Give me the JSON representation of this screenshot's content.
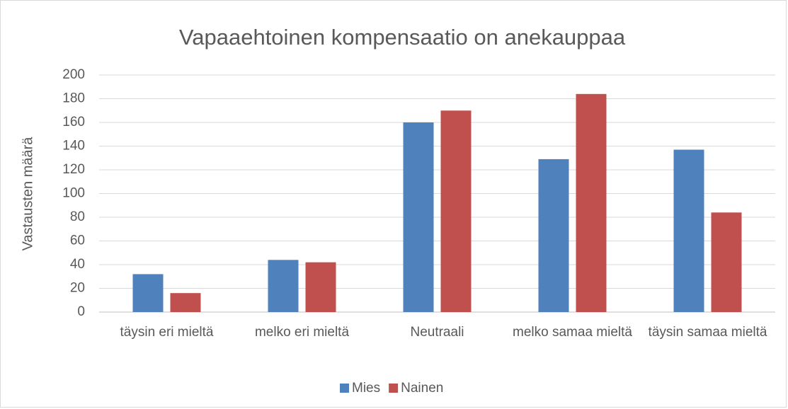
{
  "chart_data": {
    "type": "bar",
    "title": "Vapaaehtoinen kompensaatio on anekauppaa",
    "y_label": "Vastausten määrä",
    "categories": [
      "täysin eri mieltä",
      "melko eri mieltä",
      "Neutraali",
      "melko samaa mieltä",
      "täysin samaa mieltä"
    ],
    "series": [
      {
        "name": "Mies",
        "color": "#4f81bd",
        "values": [
          32,
          44,
          160,
          129,
          137
        ]
      },
      {
        "name": "Nainen",
        "color": "#c0504d",
        "values": [
          16,
          42,
          170,
          184,
          84
        ]
      }
    ],
    "ylim": [
      0,
      200
    ],
    "yticks": [
      0,
      20,
      40,
      60,
      80,
      100,
      120,
      140,
      160,
      180,
      200
    ],
    "grid": true,
    "legend": "bottom"
  }
}
